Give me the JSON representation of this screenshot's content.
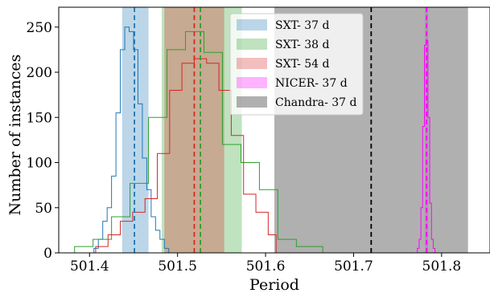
{
  "chart_data": {
    "type": "area",
    "title": "",
    "xlabel": "Period",
    "ylabel": "Number of instances",
    "xlim": [
      501.365,
      501.855
    ],
    "ylim": [
      0,
      272
    ],
    "x_ticks": [
      501.4,
      501.5,
      501.6,
      501.7,
      501.8
    ],
    "x_tick_labels": [
      "501.4",
      "501.5",
      "501.6",
      "501.7",
      "501.8"
    ],
    "y_ticks": [
      0,
      50,
      100,
      150,
      200,
      250
    ],
    "y_tick_labels": [
      "0",
      "50",
      "100",
      "150",
      "200",
      "250"
    ],
    "grid": false,
    "legend_position": "upper center",
    "series": [
      {
        "name": "SXT- 37 d",
        "color": "#1f77b4",
        "band": [
          501.437,
          501.467
        ],
        "median": 501.451,
        "histogram": {
          "edges": [
            501.405,
            501.41,
            501.415,
            501.42,
            501.425,
            501.43,
            501.435,
            501.44,
            501.445,
            501.45,
            501.455,
            501.46,
            501.465,
            501.47,
            501.475,
            501.48,
            501.485,
            501.49,
            501.495
          ],
          "counts": [
            5,
            15,
            35,
            50,
            85,
            155,
            225,
            250,
            245,
            225,
            165,
            105,
            70,
            40,
            25,
            15,
            5,
            0
          ]
        }
      },
      {
        "name": "SXT- 38 d",
        "color": "#2ca02c",
        "band": [
          501.482,
          501.573
        ],
        "median": 501.526,
        "histogram": {
          "edges": [
            501.383,
            501.404,
            501.425,
            501.446,
            501.467,
            501.488,
            501.509,
            501.53,
            501.551,
            501.572,
            501.593,
            501.614,
            501.635,
            501.665
          ],
          "counts": [
            7,
            15,
            40,
            77,
            150,
            225,
            245,
            222,
            120,
            100,
            70,
            15,
            7
          ]
        }
      },
      {
        "name": "SXT- 54 d",
        "color": "#d62728",
        "band": [
          501.485,
          501.553
        ],
        "median": 501.519,
        "histogram": {
          "edges": [
            501.407,
            501.421,
            501.435,
            501.449,
            501.463,
            501.477,
            501.491,
            501.505,
            501.519,
            501.533,
            501.547,
            501.561,
            501.575,
            501.589,
            501.603,
            501.612
          ],
          "counts": [
            7,
            20,
            35,
            45,
            60,
            110,
            180,
            210,
            215,
            210,
            180,
            130,
            65,
            45,
            20
          ]
        }
      },
      {
        "name": "NICER- 37 d",
        "color": "#ff00ff",
        "band": [
          501.781,
          501.785
        ],
        "median": 501.783,
        "histogram": {
          "edges": [
            501.7725,
            501.7745,
            501.7765,
            501.7785,
            501.7805,
            501.7825,
            501.7845,
            501.7865,
            501.7885,
            501.7905,
            501.7925
          ],
          "counts": [
            5,
            15,
            50,
            140,
            230,
            235,
            150,
            55,
            15,
            5
          ]
        }
      },
      {
        "name": "Chandra- 37 d",
        "color": "#808080",
        "band": [
          501.61,
          501.83
        ],
        "median": 501.72
      }
    ]
  }
}
